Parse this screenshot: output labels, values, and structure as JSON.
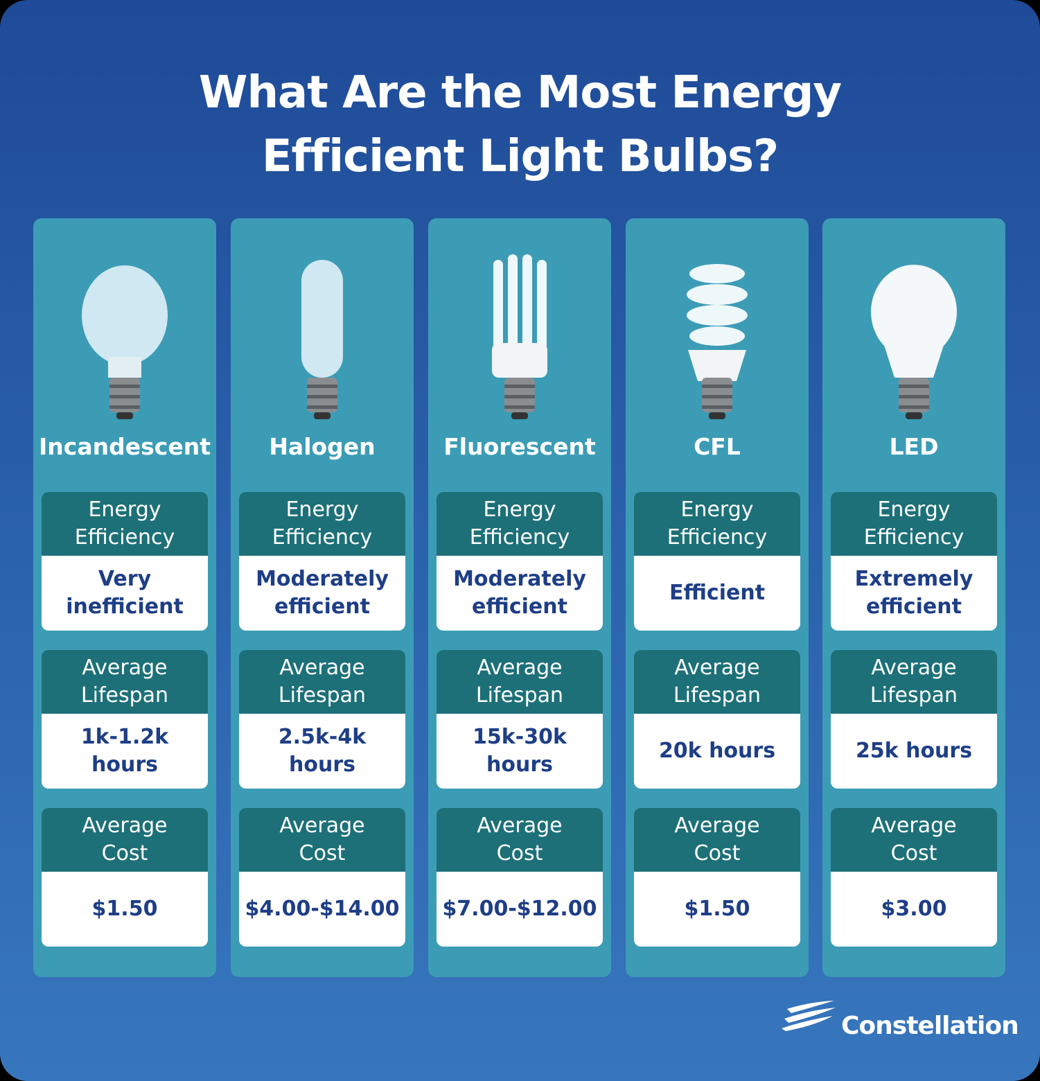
{
  "header": {
    "title": "What Are the Most Energy\nEfficient Light Bulbs?"
  },
  "columns": [
    {
      "name": "Incandescent",
      "metrics": [
        {
          "label": "Energy\nEfficiency",
          "value": "Very\ninefficient"
        },
        {
          "label": "Average\nLifespan",
          "value": "1k-1.2k\nhours"
        },
        {
          "label": "Average\nCost",
          "value": "$1.50"
        }
      ]
    },
    {
      "name": "Halogen",
      "metrics": [
        {
          "label": "Energy\nEfficiency",
          "value": "Moderately\nefficient"
        },
        {
          "label": "Average\nLifespan",
          "value": "2.5k-4k\nhours"
        },
        {
          "label": "Average\nCost",
          "value": "$4.00-$14.00"
        }
      ]
    },
    {
      "name": "Fluorescent",
      "metrics": [
        {
          "label": "Energy\nEfficiency",
          "value": "Moderately\nefficient"
        },
        {
          "label": "Average\nLifespan",
          "value": "15k-30k\nhours"
        },
        {
          "label": "Average\nCost",
          "value": "$7.00-$12.00"
        }
      ]
    },
    {
      "name": "CFL",
      "metrics": [
        {
          "label": "Energy\nEfficiency",
          "value": "Efficient"
        },
        {
          "label": "Average\nLifespan",
          "value": "20k hours"
        },
        {
          "label": "Average\nCost",
          "value": "$1.50"
        }
      ]
    },
    {
      "name": "LED",
      "metrics": [
        {
          "label": "Energy\nEfficiency",
          "value": "Extremely\nefficient"
        },
        {
          "label": "Average\nLifespan",
          "value": "25k hours"
        },
        {
          "label": "Average\nCost",
          "value": "$3.00"
        }
      ]
    }
  ],
  "footer": {
    "logo": "Constellation"
  }
}
